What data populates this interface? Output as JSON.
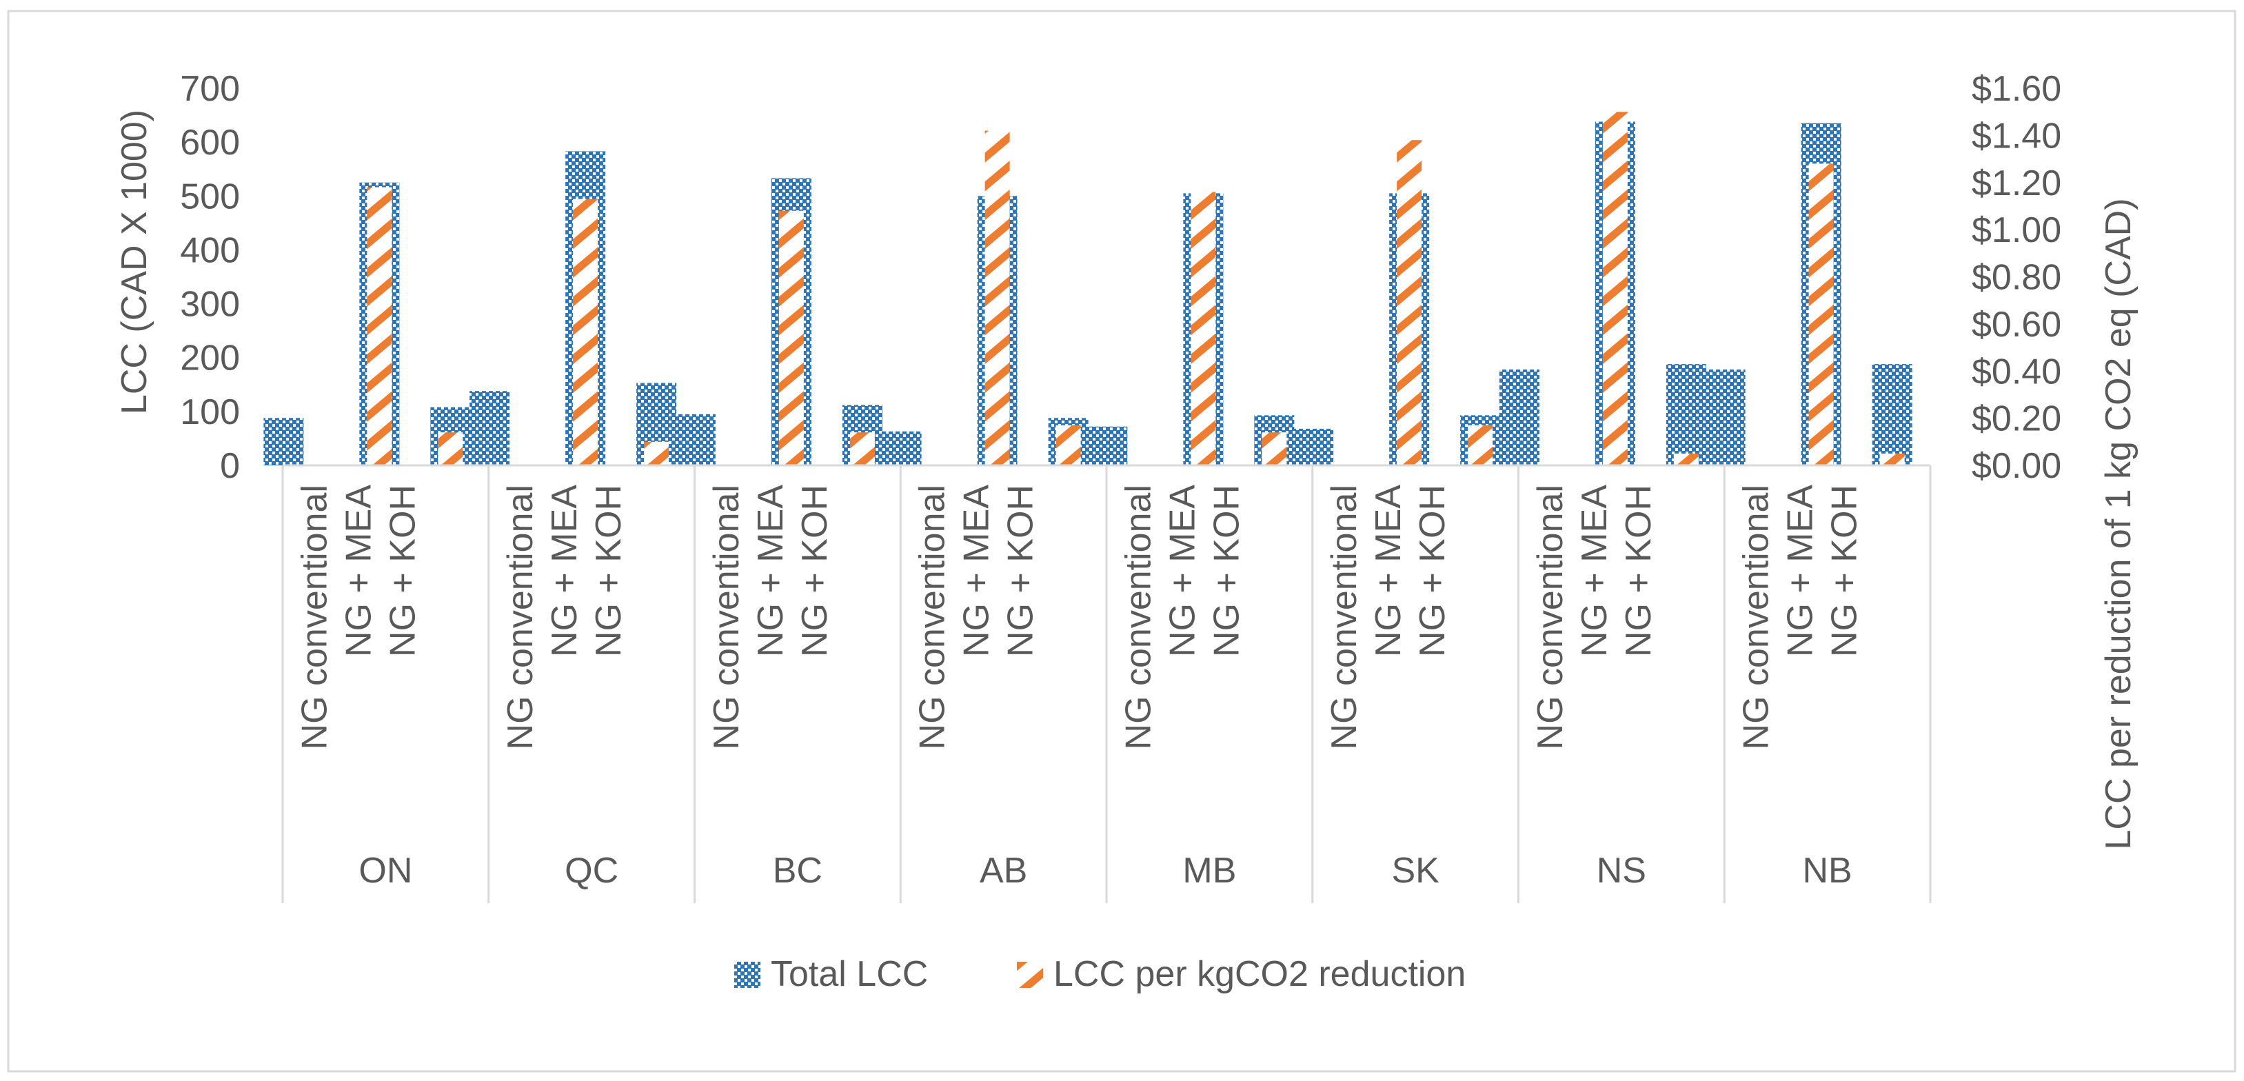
{
  "chart_data": {
    "type": "bar",
    "groups": [
      "ON",
      "QC",
      "BC",
      "AB",
      "MB",
      "SK",
      "NS",
      "NB"
    ],
    "categories": [
      "NG conventional",
      "NG + MEA",
      "NG + KOH"
    ],
    "series": [
      {
        "name": "Total LCC",
        "axis": "left",
        "color": "#2E75B6",
        "values": [
          [
            88,
            525,
            108
          ],
          [
            138,
            583,
            153
          ],
          [
            95,
            533,
            112
          ],
          [
            63,
            500,
            88
          ],
          [
            72,
            505,
            93
          ],
          [
            68,
            505,
            93
          ],
          [
            178,
            638,
            188
          ],
          [
            178,
            635,
            188
          ]
        ]
      },
      {
        "name": "LCC per kgCO2 reduction",
        "axis": "right",
        "color": "#ED7D31",
        "values": [
          [
            0,
            1.18,
            0.14
          ],
          [
            0,
            1.13,
            0.1
          ],
          [
            0,
            1.08,
            0.14
          ],
          [
            0,
            1.42,
            0.17
          ],
          [
            0,
            1.16,
            0.14
          ],
          [
            0,
            1.38,
            0.17
          ],
          [
            0,
            1.5,
            0.05
          ],
          [
            0,
            1.28,
            0.05
          ]
        ]
      }
    ],
    "y_left": {
      "label": "LCC (CAD X 1000)",
      "min": 0,
      "max": 700,
      "ticks": [
        "0",
        "100",
        "200",
        "300",
        "400",
        "500",
        "600",
        "700"
      ]
    },
    "y_right": {
      "label": "LCC per reduction of 1 kg CO2 eq (CAD)",
      "min": 0,
      "max": 1.6,
      "ticks": [
        "$0.00",
        "$0.20",
        "$0.40",
        "$0.60",
        "$0.80",
        "$1.00",
        "$1.20",
        "$1.40",
        "$1.60"
      ]
    },
    "legend_position": "bottom",
    "grid": false
  }
}
